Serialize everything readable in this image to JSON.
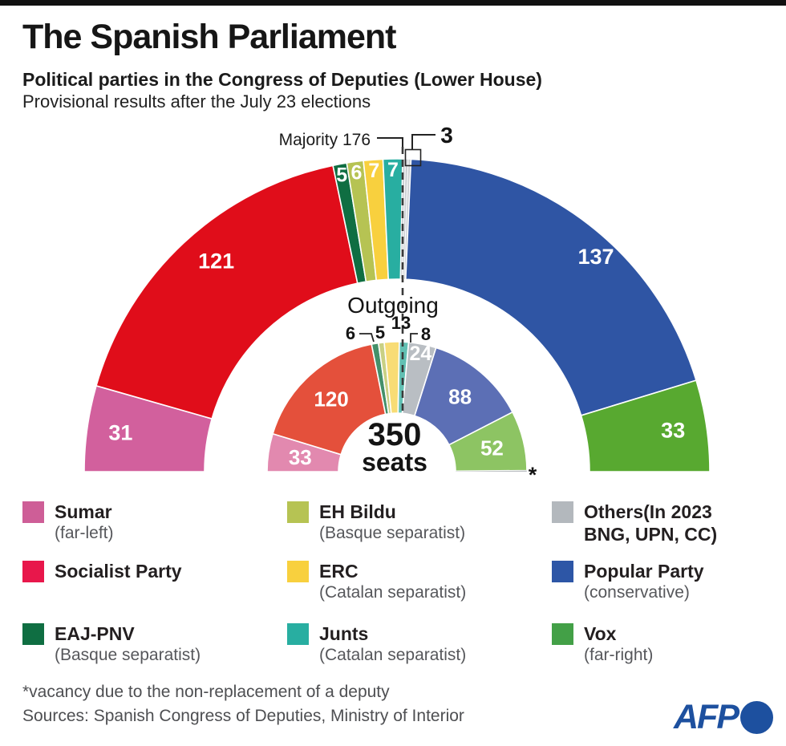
{
  "header": {
    "title": "The Spanish Parliament",
    "subtitle_bold": "Political parties in the Congress of Deputies (Lower House)",
    "subtitle": "Provisional results after the July 23 elections"
  },
  "chart_data": {
    "type": "pie",
    "subtype": "hemicycle-double-ring",
    "title": "The Spanish Parliament",
    "total_seats": 350,
    "center_value": "350",
    "center_unit": "seats",
    "majority_label": "Majority 176",
    "majority_seats": 176,
    "outgoing_ring_label": "Outgoing",
    "rings": [
      {
        "name": "new",
        "series": [
          {
            "party": "Sumar",
            "seats": 31,
            "color": "#d2609d"
          },
          {
            "party": "Socialist Party",
            "seats": 121,
            "color": "#e00d1a"
          },
          {
            "party": "EAJ-PNV",
            "seats": 5,
            "color": "#0f6e42"
          },
          {
            "party": "EH Bildu",
            "seats": 6,
            "color": "#b6c353"
          },
          {
            "party": "ERC",
            "seats": 7,
            "color": "#f8d03e"
          },
          {
            "party": "Junts",
            "seats": 7,
            "color": "#28aea1"
          },
          {
            "party": "Others",
            "seats": 3,
            "color": "#ccd0d4",
            "callout": "3"
          },
          {
            "party": "Popular Party",
            "seats": 137,
            "color": "#2f55a4"
          },
          {
            "party": "Vox",
            "seats": 33,
            "color": "#58a930"
          }
        ]
      },
      {
        "name": "outgoing",
        "series": [
          {
            "party": "Sumar",
            "seats": 33,
            "color": "#e289af"
          },
          {
            "party": "Socialist Party",
            "seats": 120,
            "color": "#e4503b"
          },
          {
            "party": "EAJ-PNV",
            "seats": 6,
            "color": "#44906a",
            "callout": "6"
          },
          {
            "party": "EH Bildu",
            "seats": 5,
            "color": "#c9d083",
            "callout": "5"
          },
          {
            "party": "ERC",
            "seats": 13,
            "color": "#f8dc75",
            "callout": "13"
          },
          {
            "party": "Junts",
            "seats": 8,
            "color": "#62c0b3",
            "callout": "8"
          },
          {
            "party": "Others",
            "seats": 24,
            "color": "#b9bec3"
          },
          {
            "party": "Popular Party",
            "seats": 88,
            "color": "#5c6fb5"
          },
          {
            "party": "Vox",
            "seats": 52,
            "color": "#8dc463"
          },
          {
            "party": "Vacancy",
            "seats": 1,
            "color": "#a5aaae",
            "callout": "*"
          }
        ]
      }
    ]
  },
  "legend": {
    "items": [
      {
        "slug": "sumar",
        "name": "Sumar",
        "sub": "(far-left)",
        "color": "#ce5e97"
      },
      {
        "slug": "socialist-party",
        "name": "Socialist Party",
        "sub": "",
        "color": "#e8174b"
      },
      {
        "slug": "eaj-pnv",
        "name": "EAJ-PNV",
        "sub": "(Basque separatist)",
        "color": "#0f6e42"
      },
      {
        "slug": "eh-bildu",
        "name": "EH Bildu",
        "sub": "(Basque separatist)",
        "color": "#b6c353"
      },
      {
        "slug": "erc",
        "name": "ERC",
        "sub": "(Catalan separatist)",
        "color": "#f8d03e"
      },
      {
        "slug": "junts",
        "name": "Junts",
        "sub": "(Catalan separatist)",
        "color": "#28aea1"
      },
      {
        "slug": "others",
        "name": "Others(In 2023",
        "name2": "BNG, UPN, CC)",
        "sub": "",
        "color": "#b3b8bd"
      },
      {
        "slug": "popular-party",
        "name": "Popular Party",
        "sub": "(conservative)",
        "color": "#2d56a6"
      },
      {
        "slug": "vox",
        "name": "Vox",
        "sub": "(far-right)",
        "color": "#43a047"
      }
    ]
  },
  "footer": {
    "footnote": "*vacancy due to the non-replacement of a deputy",
    "sources": "Sources: Spanish Congress of Deputies, Ministry of Interior",
    "logo_text": "AFP"
  }
}
